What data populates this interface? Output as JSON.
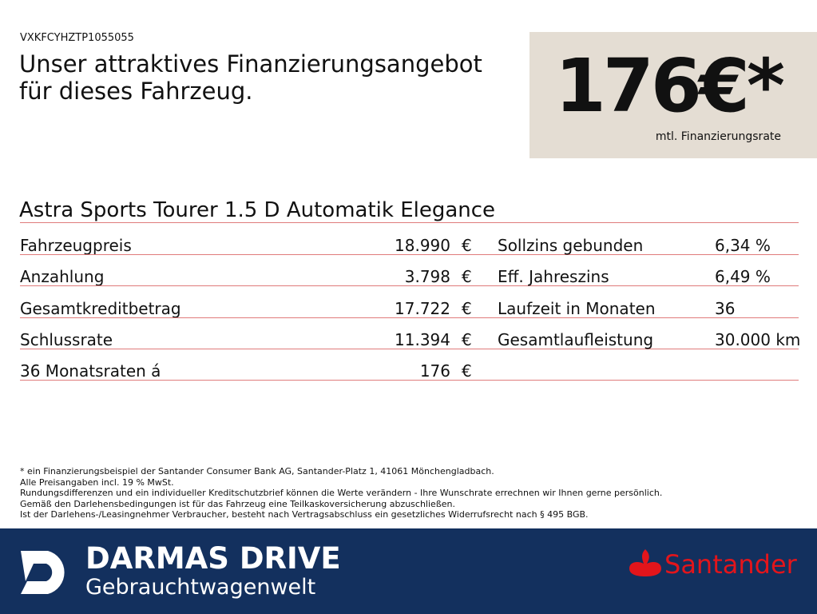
{
  "vehicle_id": "VXKFCYHZTP1055055",
  "headline": [
    "Unser attraktives Finanzierungsangebot",
    "für dieses Fahrzeug."
  ],
  "rate": {
    "amount": "176€*",
    "label": "mtl. Finanzierungsrate"
  },
  "model": "Astra Sports Tourer 1.5 D Automatik Elegance",
  "table": {
    "left": [
      [
        "Fahrzeugpreis",
        "18.990",
        "€"
      ],
      [
        "Anzahlung",
        "3.798",
        "€"
      ],
      [
        "Gesamtkreditbetrag",
        "17.722",
        "€"
      ],
      [
        "Schlussrate",
        "11.394",
        "€"
      ],
      [
        "36 Monatsraten á",
        "176",
        "€"
      ]
    ],
    "right": [
      [
        "Sollzins gebunden",
        "6,34 %"
      ],
      [
        "Eff. Jahreszins",
        "6,49 %"
      ],
      [
        "Laufzeit in Monaten",
        "36"
      ],
      [
        "Gesamtlaufleistung",
        "30.000 km"
      ]
    ]
  },
  "footnotes": [
    "* ein Finanzierungsbeispiel der Santander Consumer Bank AG, Santander-Platz 1, 41061 Mönchengladbach.",
    "Alle Preisangaben incl. 19 % MwSt.",
    "Rundungsdifferenzen und ein individueller Kreditschutzbrief können die Werte verändern - Ihre Wunschrate errechnen wir Ihnen gerne persönlich.",
    "Gemäß den Darlehensbedingungen ist für das Fahrzeug eine Teilkaskoversicherung abzuschließen.",
    "Ist der Darlehens-/Leasingnehmer Verbraucher, besteht nach Vertragsabschluss ein gesetzliches Widerrufsrecht nach § 495 BGB."
  ],
  "footer": {
    "dealer": "DARMAS DRIVE",
    "dealer_tagline": "Gebrauchtwagenwelt",
    "bank": "Santander"
  }
}
